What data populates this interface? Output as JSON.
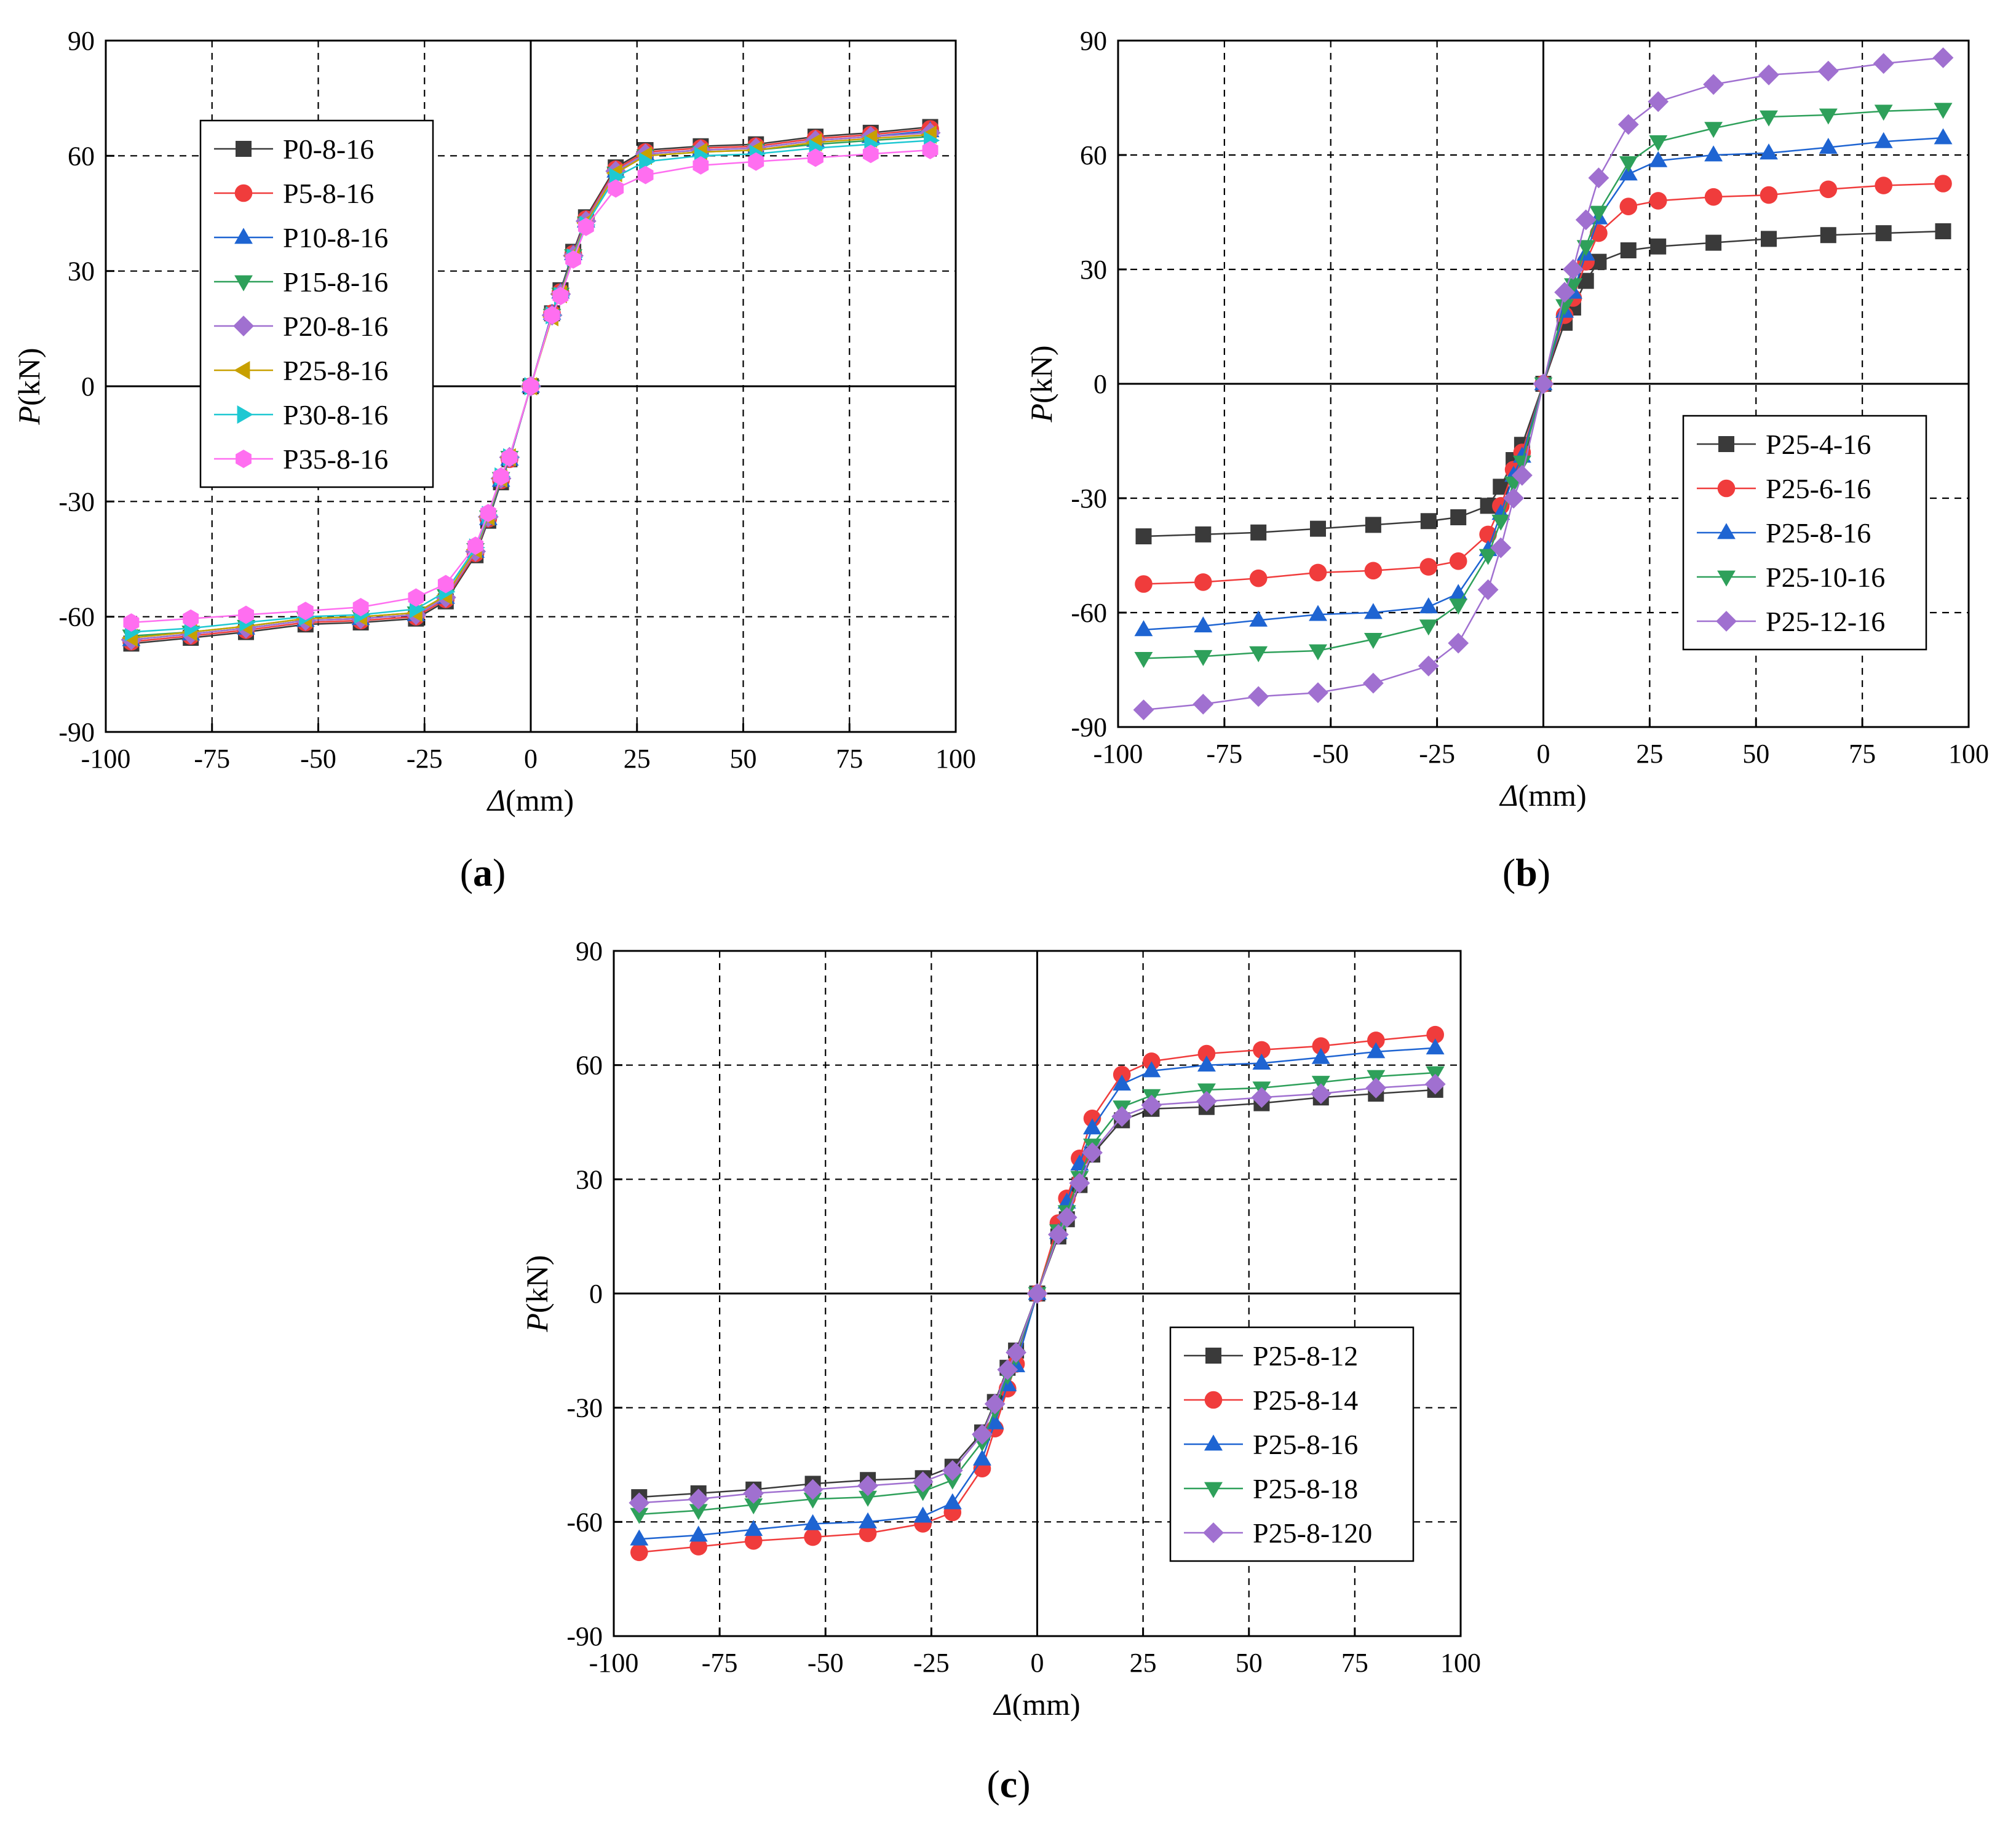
{
  "chart_data": [
    {
      "type": "line",
      "caption": "(a)",
      "caption_letter": "a",
      "xlabel_symbol": "Δ",
      "xlabel_unit": "(mm)",
      "ylabel_symbol": "P",
      "ylabel_unit": "(kN)",
      "xlim": [
        -100,
        100
      ],
      "ylim": [
        -90,
        90
      ],
      "xticks": [
        -100,
        -75,
        -50,
        -25,
        0,
        25,
        50,
        75,
        100
      ],
      "yticks": [
        -90,
        -60,
        -30,
        0,
        30,
        60,
        90
      ],
      "grid": "dashed",
      "legend_position": "top-left",
      "x": [
        -94,
        -80,
        -67,
        -53,
        -40,
        -27,
        -20,
        -13,
        -10,
        -7,
        -5,
        0,
        5,
        7,
        10,
        13,
        20,
        27,
        40,
        53,
        67,
        80,
        94
      ],
      "series": [
        {
          "name": "P0-8-16",
          "color": "#3a3a3a",
          "marker": "square",
          "values": [
            -67,
            -65.5,
            -64,
            -62,
            -61.5,
            -60.5,
            -56,
            -44,
            -35,
            -25,
            -19,
            0,
            19,
            25,
            35,
            44,
            57,
            61.5,
            62.5,
            63,
            65,
            66,
            67.5
          ]
        },
        {
          "name": "P5-8-16",
          "color": "#f03c3c",
          "marker": "circle",
          "values": [
            -66.5,
            -65,
            -63.5,
            -61.5,
            -61,
            -60,
            -55.5,
            -43.5,
            -34.5,
            -24.5,
            -19,
            0,
            19,
            24.5,
            34.5,
            43.5,
            56.5,
            61,
            62,
            62.5,
            64.5,
            65.5,
            67
          ]
        },
        {
          "name": "P10-8-16",
          "color": "#1e64d2",
          "marker": "triangle-up",
          "values": [
            -66,
            -64.5,
            -63,
            -61,
            -60.5,
            -59.5,
            -55,
            -43,
            -34.5,
            -24.5,
            -19,
            0,
            19,
            24.5,
            34.5,
            43,
            56,
            60.5,
            61.5,
            62,
            64,
            65,
            66.5
          ]
        },
        {
          "name": "P15-8-16",
          "color": "#2ea05a",
          "marker": "triangle-down",
          "values": [
            -65,
            -64,
            -62.5,
            -60.5,
            -60,
            -59,
            -54.5,
            -42.5,
            -34,
            -24,
            -18.5,
            0,
            18.5,
            24,
            34,
            42.5,
            55.5,
            60,
            61,
            61.5,
            63,
            64,
            65
          ]
        },
        {
          "name": "P20-8-16",
          "color": "#a070d0",
          "marker": "diamond",
          "values": [
            -66,
            -64.5,
            -63,
            -61,
            -60.5,
            -59.5,
            -55,
            -43,
            -34,
            -24,
            -18.5,
            0,
            18.5,
            24,
            34,
            43,
            56,
            60.5,
            61.5,
            62,
            64,
            65,
            66
          ]
        },
        {
          "name": "P25-8-16",
          "color": "#c8a000",
          "marker": "triangle-left",
          "values": [
            -65.5,
            -64,
            -62.5,
            -60.5,
            -60,
            -59,
            -54.5,
            -42.5,
            -34,
            -24,
            -18.5,
            0,
            18,
            24,
            34,
            42.5,
            55.5,
            60,
            61,
            61.5,
            63.5,
            64.5,
            65.5
          ]
        },
        {
          "name": "P30-8-16",
          "color": "#1ec8d2",
          "marker": "triangle-right",
          "values": [
            -64,
            -63,
            -61.5,
            -60,
            -59.5,
            -58,
            -53.5,
            -42,
            -33.5,
            -23.5,
            -18.5,
            0,
            18.5,
            23.5,
            33.5,
            42,
            54.5,
            58.5,
            60,
            60.5,
            62,
            63,
            64
          ]
        },
        {
          "name": "P35-8-16",
          "color": "#ff6ef0",
          "marker": "hexagon",
          "values": [
            -61.5,
            -60.5,
            -59.5,
            -58.5,
            -57.5,
            -55,
            -51.5,
            -41.5,
            -33,
            -23.5,
            -18.5,
            0,
            18.5,
            23.5,
            33,
            41.5,
            51.5,
            55,
            57.5,
            58.5,
            59.5,
            60.5,
            61.5
          ]
        }
      ]
    },
    {
      "type": "line",
      "caption": "(b)",
      "caption_letter": "b",
      "xlabel_symbol": "Δ",
      "xlabel_unit": "(mm)",
      "ylabel_symbol": "P",
      "ylabel_unit": "(kN)",
      "xlim": [
        -100,
        100
      ],
      "ylim": [
        -90,
        90
      ],
      "xticks": [
        -100,
        -75,
        -50,
        -25,
        0,
        25,
        50,
        75,
        100
      ],
      "yticks": [
        -90,
        -60,
        -30,
        0,
        30,
        60,
        90
      ],
      "grid": "dashed",
      "legend_position": "bottom-right",
      "x": [
        -94,
        -80,
        -67,
        -53,
        -40,
        -27,
        -20,
        -13,
        -10,
        -7,
        -5,
        0,
        5,
        7,
        10,
        13,
        20,
        27,
        40,
        53,
        67,
        80,
        94
      ],
      "series": [
        {
          "name": "P25-4-16",
          "color": "#3a3a3a",
          "marker": "square",
          "values": [
            -40,
            -39.5,
            -39,
            -38,
            -37,
            -36,
            -35,
            -32,
            -27,
            -20,
            -16,
            0,
            16,
            20,
            27,
            32,
            35,
            36,
            37,
            38,
            39,
            39.5,
            40
          ]
        },
        {
          "name": "P25-6-16",
          "color": "#f03c3c",
          "marker": "circle",
          "values": [
            -52.5,
            -52,
            -51,
            -49.5,
            -49,
            -48,
            -46.5,
            -39.5,
            -32,
            -22.5,
            -18,
            0,
            18,
            22.5,
            32,
            39.5,
            46.5,
            48,
            49,
            49.5,
            51,
            52,
            52.5
          ]
        },
        {
          "name": "P25-8-16",
          "color": "#1e64d2",
          "marker": "triangle-up",
          "values": [
            -64.5,
            -63.5,
            -62,
            -60.5,
            -60,
            -58.5,
            -55,
            -43.5,
            -34,
            -24,
            -19,
            0,
            19,
            24,
            34,
            43.5,
            55,
            58.5,
            60,
            60.5,
            62,
            63.5,
            64.5
          ]
        },
        {
          "name": "P25-10-16",
          "color": "#2ea05a",
          "marker": "triangle-down",
          "values": [
            -72,
            -71.5,
            -70.5,
            -70,
            -67,
            -63.5,
            -58,
            -45,
            -36,
            -26,
            -20.5,
            0,
            20.5,
            26,
            36,
            45,
            58,
            63.5,
            67,
            70,
            70.5,
            71.5,
            72
          ]
        },
        {
          "name": "P25-12-16",
          "color": "#a070d0",
          "marker": "diamond",
          "values": [
            -85.5,
            -84,
            -82,
            -81,
            -78.5,
            -74,
            -68,
            -54,
            -43,
            -30,
            -24,
            0,
            24,
            30,
            43,
            54,
            68,
            74,
            78.5,
            81,
            82,
            84,
            85.5
          ]
        }
      ]
    },
    {
      "type": "line",
      "caption": "(c)",
      "caption_letter": "c",
      "xlabel_symbol": "Δ",
      "xlabel_unit": "(mm)",
      "ylabel_symbol": "P",
      "ylabel_unit": "(kN)",
      "xlim": [
        -100,
        100
      ],
      "ylim": [
        -90,
        90
      ],
      "xticks": [
        -100,
        -75,
        -50,
        -25,
        0,
        25,
        50,
        75,
        100
      ],
      "yticks": [
        -90,
        -60,
        -30,
        0,
        30,
        60,
        90
      ],
      "grid": "dashed",
      "legend_position": "bottom-right",
      "x": [
        -94,
        -80,
        -67,
        -53,
        -40,
        -27,
        -20,
        -13,
        -10,
        -7,
        -5,
        0,
        5,
        7,
        10,
        13,
        20,
        27,
        40,
        53,
        67,
        80,
        94
      ],
      "series": [
        {
          "name": "P25-8-12",
          "color": "#3a3a3a",
          "marker": "square",
          "values": [
            -53.5,
            -52.5,
            -51.5,
            -50,
            -49,
            -48.5,
            -45.5,
            -36.5,
            -28.5,
            -19.5,
            -15,
            0,
            15,
            19.5,
            28.5,
            36.5,
            45.5,
            48.5,
            49,
            50,
            51.5,
            52.5,
            53.5
          ]
        },
        {
          "name": "P25-8-14",
          "color": "#f03c3c",
          "marker": "circle",
          "values": [
            -68,
            -66.5,
            -65,
            -64,
            -63,
            -60.5,
            -57.5,
            -46,
            -35.5,
            -25,
            -18.5,
            0,
            18.5,
            25,
            35.5,
            46,
            57.5,
            61,
            63,
            64,
            65,
            66.5,
            68
          ]
        },
        {
          "name": "P25-8-16",
          "color": "#1e64d2",
          "marker": "triangle-up",
          "values": [
            -64.5,
            -63.5,
            -62,
            -60.5,
            -60,
            -58.5,
            -55,
            -43.5,
            -34,
            -24,
            -19,
            0,
            16,
            24,
            34,
            43.5,
            55,
            58.5,
            60,
            60.5,
            62,
            63.5,
            64.5
          ]
        },
        {
          "name": "P25-8-18",
          "color": "#2ea05a",
          "marker": "triangle-down",
          "values": [
            -58,
            -57,
            -55.5,
            -54,
            -53.5,
            -52,
            -49,
            -39,
            -30.5,
            -21.5,
            -16.5,
            0,
            16.5,
            21.5,
            30.5,
            39,
            49,
            52,
            53.5,
            54,
            55.5,
            57,
            58
          ]
        },
        {
          "name": "P25-8-120",
          "color": "#a070d0",
          "marker": "diamond",
          "values": [
            -55,
            -54,
            -52.5,
            -51.5,
            -50.5,
            -49.5,
            -46.5,
            -37,
            -29,
            -20,
            -15.5,
            0,
            15.5,
            20,
            29,
            37,
            46.5,
            49.5,
            50.5,
            51.5,
            52.5,
            54,
            55
          ]
        }
      ]
    }
  ]
}
